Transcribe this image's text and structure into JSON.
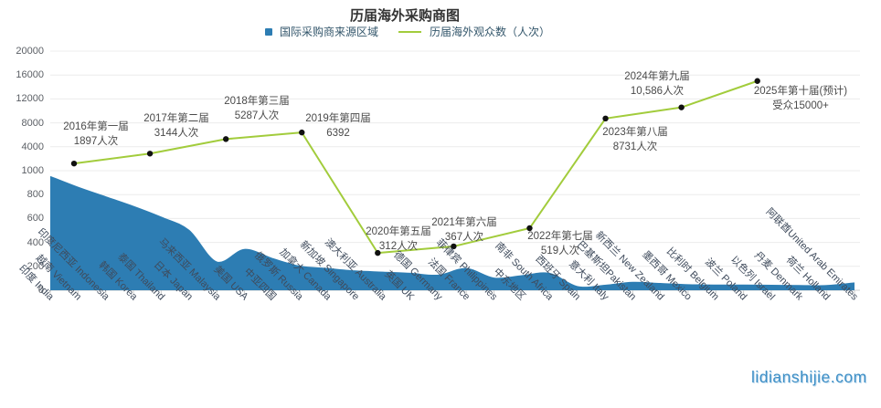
{
  "title": "历届海外采购商图",
  "legend": {
    "items": [
      {
        "label": "国际采购商来源区域",
        "marker": "square",
        "color": "#2d7db3"
      },
      {
        "label": "历届海外观众数（人次）",
        "marker": "line",
        "color": "#a2cc3c"
      }
    ]
  },
  "watermark": "lidianshijie.com",
  "colors": {
    "area_fill": "#2d7db3",
    "line": "#a2cc3c",
    "dot": "#111111",
    "grid": "#ececec",
    "axis": "#cccccc",
    "y_label": "#5c6066",
    "x_label": "#3f4b5c",
    "annotation": "#4a4a4a"
  },
  "chart_data": {
    "type": "combo",
    "title": "历届海外采购商图",
    "legend_position": "top-center",
    "grid": true,
    "y_axis": {
      "ticks": [
        0,
        200,
        400,
        600,
        800,
        1000,
        4000,
        8000,
        12000,
        16000,
        20000
      ],
      "scale_note": "dual-segment axis: 0-1000 step 200, then 1000-20000, ticks evenly spaced"
    },
    "categories": [
      "印度 India",
      "越南 Vietnam",
      "印度尼西亚 Indonesia",
      "韩国 Korea",
      "泰国 Thailand",
      "日本 Japan",
      "马来西亚 Malaysia",
      "美国 USA",
      "中亚四国",
      "俄罗斯 Russia",
      "加拿大 Canada",
      "新加坡 Singapore",
      "澳大利亚 Australia",
      "英国 UK",
      "德国 Germany",
      "法国 France",
      "菲律宾 Philippines",
      "中东地区",
      "南非 South Africa",
      "西班牙 Spain",
      "意大利 Italy",
      "巴基斯坦Pakistan",
      "新西兰 New Zealand",
      "墨西哥 Mexico",
      "比利时 Belgium",
      "波兰 Poland",
      "以色列 Israel",
      "丹麦 Denmark",
      "荷兰 Holland",
      "阿联酋United Arab Emirates"
    ],
    "series": [
      {
        "name": "国际采购商来源区域",
        "type": "area",
        "smooth": true,
        "color": "#2d7db3",
        "values": [
          950,
          860,
          780,
          700,
          610,
          500,
          235,
          340,
          265,
          200,
          180,
          160,
          150,
          140,
          125,
          180,
          100,
          120,
          140,
          30,
          40,
          65,
          55,
          45,
          42,
          42,
          40,
          38,
          38,
          60
        ]
      },
      {
        "name": "历届海外观众数（人次）",
        "type": "line",
        "smooth": false,
        "color": "#a2cc3c",
        "points": [
          {
            "label": "2016年第一届",
            "value": 1897,
            "value_label": "1897人次"
          },
          {
            "label": "2017年第二届",
            "value": 3144,
            "value_label": "3144人次"
          },
          {
            "label": "2018年第三届",
            "value": 5287,
            "value_label": "5287人次"
          },
          {
            "label": "2019年第四届",
            "value": 6392,
            "value_label": "6392"
          },
          {
            "label": "2020年第五届",
            "value": 312,
            "value_label": "312人次"
          },
          {
            "label": "2021年第六届",
            "value": 367,
            "value_label": "367人次"
          },
          {
            "label": "2022年第七届",
            "value": 519,
            "value_label": "519人次"
          },
          {
            "label": "2023年第八届",
            "value": 8731,
            "value_label": "8731人次"
          },
          {
            "label": "2024年第九届",
            "value": 10586,
            "value_label": "10,586人次"
          },
          {
            "label": "2025年第十届(预计)",
            "value": 15000,
            "value_label": "受众15000+"
          }
        ]
      }
    ]
  }
}
